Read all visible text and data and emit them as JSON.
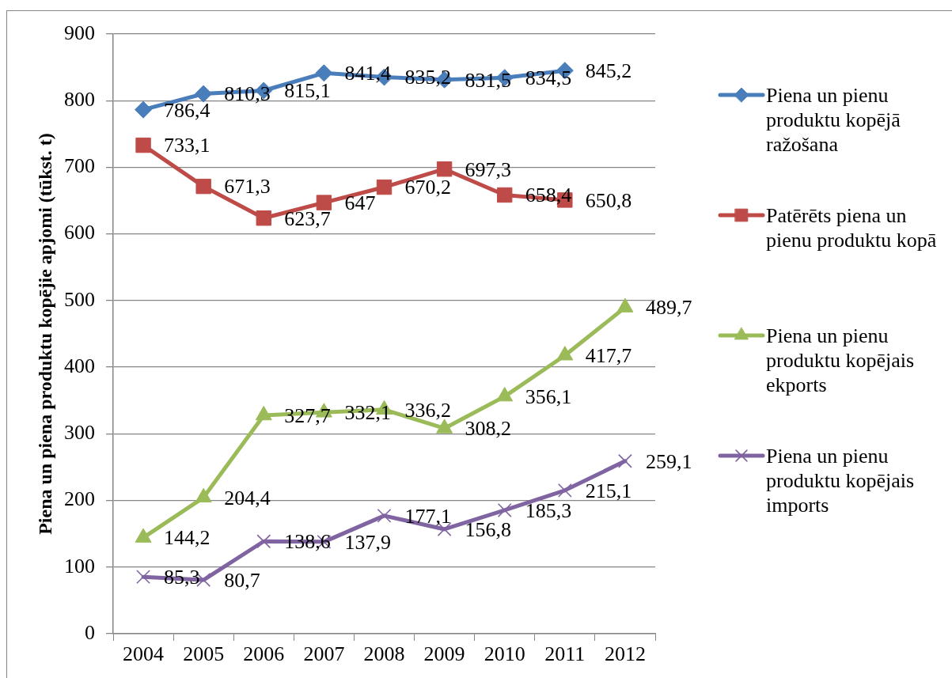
{
  "chart_data": {
    "type": "line",
    "ylabel": "Piena un piena produktu kopējie apjomi (tūkst. t)",
    "categories": [
      "2004",
      "2005",
      "2006",
      "2007",
      "2008",
      "2009",
      "2010",
      "2011",
      "2012"
    ],
    "ylim": [
      0,
      900
    ],
    "yticks": [
      0,
      100,
      200,
      300,
      400,
      500,
      600,
      700,
      800,
      900
    ],
    "grid": "y",
    "legend": "right",
    "line_style": "solid",
    "series": [
      {
        "name": "Piena un pienu produktu kopējā ražošana",
        "color": "#4a7ebb",
        "marker": "diamond",
        "values": [
          786.4,
          810.3,
          815.1,
          841.4,
          835.2,
          831.5,
          834.5,
          845.2,
          null
        ],
        "value_labels": [
          "786,4",
          "810,3",
          "815,1",
          "841,4",
          "835,2",
          "831,5",
          "834,5",
          "845,2",
          null
        ]
      },
      {
        "name": "Patērēts piena un pienu produktu kopā",
        "color": "#be4b48",
        "marker": "square",
        "values": [
          733.1,
          671.3,
          623.7,
          647,
          670.2,
          697.3,
          658.4,
          650.8,
          null
        ],
        "value_labels": [
          "733,1",
          "671,3",
          "623,7",
          "647",
          "670,2",
          "697,3",
          "658,4",
          "650,8",
          null
        ]
      },
      {
        "name": "Piena un pienu produktu kopējais ekports",
        "color": "#9bbb59",
        "marker": "triangle",
        "values": [
          144.2,
          204.4,
          327.7,
          332.1,
          336.2,
          308.2,
          356.1,
          417.7,
          489.7
        ],
        "value_labels": [
          "144,2",
          "204,4",
          "327,7",
          "332,1",
          "336,2",
          "308,2",
          "356,1",
          "417,7",
          "489,7"
        ]
      },
      {
        "name": "Piena un pienu produktu kopējais imports",
        "color": "#8064a2",
        "marker": "cross",
        "values": [
          85.3,
          80.7,
          138.6,
          137.9,
          177.1,
          156.8,
          185.3,
          215.1,
          259.1
        ],
        "value_labels": [
          "85,3",
          "80,7",
          "138,6",
          "137,9",
          "177,1",
          "156,8",
          "185,3",
          "215,1",
          "259,1"
        ]
      }
    ]
  }
}
